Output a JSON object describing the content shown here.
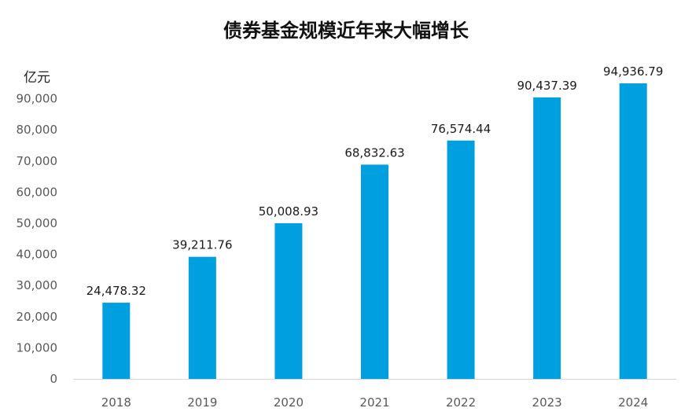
{
  "chart_data": {
    "type": "bar",
    "title": "债券基金规模近年来大幅增长",
    "ylabel": "亿元",
    "xlabel": "",
    "categories": [
      "2018",
      "2019",
      "2020",
      "2021",
      "2022",
      "2023",
      "2024"
    ],
    "values": [
      24478.32,
      39211.76,
      50008.93,
      68832.63,
      76574.44,
      90437.39,
      94936.79
    ],
    "data_labels": [
      "24,478.32",
      "39,211.76",
      "50,008.93",
      "68,832.63",
      "76,574.44",
      "90,437.39",
      "94,936.79"
    ],
    "yticks": [
      0,
      10000,
      20000,
      30000,
      40000,
      50000,
      60000,
      70000,
      80000,
      90000
    ],
    "ytick_labels": [
      "0",
      "10,000",
      "20,000",
      "30,000",
      "40,000",
      "50,000",
      "60,000",
      "70,000",
      "80,000",
      "90,000"
    ],
    "ylim": [
      0,
      90000
    ],
    "grid": false,
    "legend": "none",
    "bar_color": "#00A0E0",
    "axis_color": "#d9d9d9"
  }
}
